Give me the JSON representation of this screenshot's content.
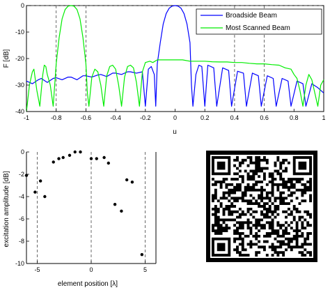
{
  "chart_data": [
    {
      "type": "line",
      "xlabel": "u",
      "ylabel": "F [dB]",
      "xlim": [
        -1,
        1
      ],
      "ylim": [
        -40,
        0
      ],
      "xticks": [
        "-1",
        "-0.8",
        "-0.6",
        "-0.4",
        "-0.2",
        "0",
        "0.2",
        "0.4",
        "0.6",
        "0.8",
        "1"
      ],
      "yticks": [
        "0",
        "-10",
        "-20",
        "-30",
        "-40"
      ],
      "legend_placement": "top-right",
      "dashed_vlines": [
        -0.8,
        -0.6,
        0.4,
        0.6
      ],
      "series": [
        {
          "name": "Broadside Beam",
          "color": "#0000ff",
          "x": [
            -1,
            -0.96,
            -0.92,
            -0.9,
            -0.86,
            -0.82,
            -0.8,
            -0.76,
            -0.72,
            -0.7,
            -0.66,
            -0.62,
            -0.6,
            -0.56,
            -0.52,
            -0.5,
            -0.46,
            -0.42,
            -0.4,
            -0.36,
            -0.32,
            -0.3,
            -0.26,
            -0.22,
            -0.2,
            -0.18,
            -0.16,
            -0.14,
            -0.13,
            -0.12,
            -0.1,
            -0.08,
            -0.06,
            -0.04,
            -0.02,
            0,
            0.02,
            0.04,
            0.06,
            0.08,
            0.1,
            0.11,
            0.12,
            0.14,
            0.16,
            0.18,
            0.2,
            0.22,
            0.26,
            0.28,
            0.32,
            0.36,
            0.38,
            0.42,
            0.46,
            0.48,
            0.52,
            0.56,
            0.58,
            0.62,
            0.66,
            0.68,
            0.72,
            0.76,
            0.78,
            0.82,
            0.86,
            0.88,
            0.92,
            0.96,
            1
          ],
          "y": [
            -28.5,
            -29.5,
            -28,
            -27.5,
            -29,
            -27.5,
            -27.2,
            -28,
            -27,
            -27,
            -28,
            -26.5,
            -26.5,
            -27,
            -26.2,
            -26,
            -26.8,
            -25.5,
            -25.5,
            -26,
            -25,
            -25,
            -25.5,
            -25,
            -38,
            -24,
            -23,
            -26,
            -38,
            -22,
            -14,
            -7,
            -3,
            -1,
            -0.2,
            0,
            -0.2,
            -1,
            -3,
            -7,
            -14,
            -30,
            -38,
            -26,
            -22.5,
            -23,
            -38,
            -22.5,
            -23.5,
            -38,
            -23.5,
            -24.5,
            -38,
            -24.8,
            -25.5,
            -38,
            -25.5,
            -26.5,
            -38,
            -26.5,
            -27.5,
            -38,
            -27.5,
            -28.5,
            -38,
            -28.5,
            -29.5,
            -38,
            -29.5,
            -31,
            -33
          ]
        },
        {
          "name": "Most Scanned Beam",
          "color": "#00ee00",
          "x": [
            -1,
            -0.98,
            -0.96,
            -0.95,
            -0.93,
            -0.91,
            -0.9,
            -0.89,
            -0.88,
            -0.87,
            -0.86,
            -0.84,
            -0.82,
            -0.8,
            -0.78,
            -0.76,
            -0.74,
            -0.72,
            -0.7,
            -0.68,
            -0.66,
            -0.64,
            -0.62,
            -0.6,
            -0.59,
            -0.58,
            -0.56,
            -0.54,
            -0.52,
            -0.5,
            -0.48,
            -0.46,
            -0.44,
            -0.42,
            -0.4,
            -0.38,
            -0.36,
            -0.34,
            -0.32,
            -0.3,
            -0.28,
            -0.26,
            -0.24,
            -0.22,
            -0.2,
            -0.17,
            -0.15,
            -0.12,
            -0.1,
            -0.05,
            0,
            0.05,
            0.1,
            0.15,
            0.2,
            0.25,
            0.3,
            0.35,
            0.4,
            0.45,
            0.5,
            0.55,
            0.6,
            0.65,
            0.7,
            0.74,
            0.78,
            0.8,
            0.82,
            0.84,
            0.86,
            0.88,
            0.9,
            0.92,
            0.94,
            0.96,
            0.98,
            1
          ],
          "y": [
            -40,
            -30,
            -25,
            -24,
            -32,
            -38,
            -32,
            -26,
            -22.5,
            -23,
            -26,
            -30,
            -38,
            -22,
            -12,
            -5,
            -1.5,
            -0.2,
            0,
            -0.2,
            -1.5,
            -5,
            -12,
            -22,
            -33,
            -38,
            -27,
            -24,
            -25,
            -30,
            -38,
            -26.5,
            -23,
            -22.5,
            -24,
            -30,
            -38,
            -27,
            -23,
            -22.5,
            -23.5,
            -29,
            -38,
            -25,
            -21.5,
            -21,
            -21.5,
            -20.5,
            -20.5,
            -20.5,
            -20.5,
            -20.5,
            -21,
            -21,
            -21,
            -21.2,
            -21.3,
            -21.3,
            -21.5,
            -21.5,
            -21.8,
            -22,
            -22,
            -22.3,
            -22.5,
            -23.5,
            -24,
            -26,
            -27.5,
            -32,
            -38,
            -30,
            -26,
            -28,
            -33,
            -38,
            -30,
            -28
          ]
        }
      ]
    },
    {
      "type": "scatter",
      "xlabel": "element position [λ]",
      "ylabel": "excitation amplitude [dB]",
      "xlim": [
        -6,
        6
      ],
      "ylim": [
        -10,
        0
      ],
      "xticks": [
        "-5",
        "0",
        "5"
      ],
      "yticks": [
        "0",
        "-2",
        "-4",
        "-6",
        "-8",
        "-10"
      ],
      "dashed_vlines": [
        -5,
        0,
        5
      ],
      "points": [
        {
          "x": -6.0,
          "y": -2.1
        },
        {
          "x": -5.2,
          "y": -3.6
        },
        {
          "x": -4.7,
          "y": -2.6
        },
        {
          "x": -4.3,
          "y": -4.0
        },
        {
          "x": -3.5,
          "y": -0.9
        },
        {
          "x": -3.0,
          "y": -0.6
        },
        {
          "x": -2.6,
          "y": -0.5
        },
        {
          "x": -2.0,
          "y": -0.3
        },
        {
          "x": -1.5,
          "y": 0.0
        },
        {
          "x": -1.0,
          "y": 0.0
        },
        {
          "x": 0.0,
          "y": -0.6
        },
        {
          "x": 0.5,
          "y": -0.6
        },
        {
          "x": 1.2,
          "y": -0.5
        },
        {
          "x": 1.6,
          "y": -1.0
        },
        {
          "x": 2.2,
          "y": -4.7
        },
        {
          "x": 2.8,
          "y": -5.3
        },
        {
          "x": 3.3,
          "y": -2.5
        },
        {
          "x": 3.8,
          "y": -2.7
        },
        {
          "x": 4.7,
          "y": -9.2
        }
      ]
    }
  ]
}
